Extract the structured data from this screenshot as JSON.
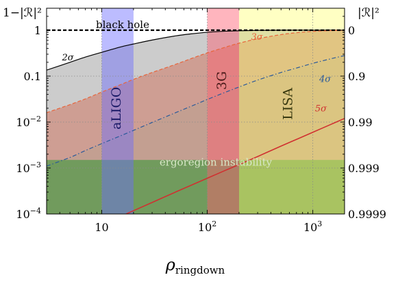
{
  "chart_data": {
    "type": "line",
    "xlabel": "ρ",
    "xlabel_sub": "ringdown",
    "ylabel_left": "1−|ℛ|²",
    "ylabel_right": "|ℛ|²",
    "xscale": "log",
    "yscale": "log",
    "xlim": [
      3,
      2000
    ],
    "ylim": [
      0.0001,
      3
    ],
    "x_ticks": [
      {
        "value": 10,
        "base": "10",
        "exp": ""
      },
      {
        "value": 100,
        "base": "10",
        "exp": "2"
      },
      {
        "value": 1000,
        "base": "10",
        "exp": "3"
      }
    ],
    "y_ticks_left": [
      {
        "value": 1,
        "base": "1",
        "exp": ""
      },
      {
        "value": 0.1,
        "base": "0.1",
        "exp": ""
      },
      {
        "value": 0.01,
        "base": "10",
        "exp": "−2"
      },
      {
        "value": 0.001,
        "base": "10",
        "exp": "−3"
      },
      {
        "value": 0.0001,
        "base": "10",
        "exp": "−4"
      }
    ],
    "y_ticks_right": [
      {
        "value": 1,
        "label": "0"
      },
      {
        "value": 0.1,
        "label": "0.9"
      },
      {
        "value": 0.01,
        "label": "0.99"
      },
      {
        "value": 0.001,
        "label": "0.999"
      },
      {
        "value": 0.0001,
        "label": "0.9999"
      }
    ],
    "detector_bands": [
      {
        "name": "aLIGO",
        "x_range": [
          10,
          20
        ],
        "color": "#6b6bff",
        "opacity": 0.45,
        "label_color": "#1a1a66"
      },
      {
        "name": "3G",
        "x_range": [
          100,
          200
        ],
        "color": "#ff5a6e",
        "opacity": 0.45,
        "label_color": "#4a1a1a"
      },
      {
        "name": "LISA",
        "x_range": [
          200,
          2000
        ],
        "color": "#ffff6a",
        "opacity": 0.4,
        "label_color": "#3a3a10"
      }
    ],
    "region_ergo": {
      "label": "ergoregion instability",
      "y_max": 0.0015,
      "color": "#3a9a3a",
      "opacity": 0.6
    },
    "black_hole_line": {
      "label": "black hole",
      "y": 1
    },
    "series": [
      {
        "name": "2σ",
        "color": "#000000",
        "dash": "solid",
        "fill": "#9a9a9a",
        "x": [
          3,
          5,
          7,
          10,
          15,
          20,
          30,
          50,
          70,
          100,
          150,
          200,
          300,
          500,
          1000,
          2000
        ],
        "y": [
          0.135,
          0.2,
          0.26,
          0.33,
          0.43,
          0.5,
          0.61,
          0.75,
          0.83,
          0.9,
          0.95,
          0.97,
          0.99,
          1.0,
          1.0,
          1.0
        ]
      },
      {
        "name": "3σ",
        "color": "#e8643a",
        "dash": "dashed",
        "fill": "#d0705a",
        "x": [
          3,
          5,
          7,
          10,
          15,
          20,
          30,
          50,
          70,
          100,
          150,
          200,
          300,
          500,
          700,
          1000,
          1500,
          2000
        ],
        "y": [
          0.016,
          0.024,
          0.032,
          0.045,
          0.065,
          0.085,
          0.12,
          0.18,
          0.24,
          0.32,
          0.43,
          0.52,
          0.65,
          0.8,
          0.88,
          0.94,
          0.98,
          1.0
        ]
      },
      {
        "name": "4σ",
        "color": "#2a5a9a",
        "dash": "dashdot",
        "fill": "#b8a090",
        "x": [
          3,
          5,
          7,
          10,
          15,
          20,
          30,
          50,
          70,
          100,
          150,
          200,
          300,
          500,
          700,
          1000,
          1500,
          2000
        ],
        "y": [
          0.0011,
          0.0017,
          0.0024,
          0.0034,
          0.005,
          0.0066,
          0.0098,
          0.016,
          0.022,
          0.031,
          0.045,
          0.058,
          0.082,
          0.12,
          0.15,
          0.19,
          0.24,
          0.28
        ]
      },
      {
        "name": "5σ",
        "color": "#d03030",
        "dash": "solid",
        "fill": "none",
        "x": [
          17,
          20,
          30,
          50,
          70,
          100,
          150,
          200,
          300,
          500,
          700,
          1000,
          1500,
          2000
        ],
        "y": [
          0.0001,
          0.000118,
          0.000178,
          0.0003,
          0.00042,
          0.0006,
          0.0009,
          0.00119,
          0.00178,
          0.003,
          0.0042,
          0.006,
          0.009,
          0.012
        ]
      }
    ]
  }
}
